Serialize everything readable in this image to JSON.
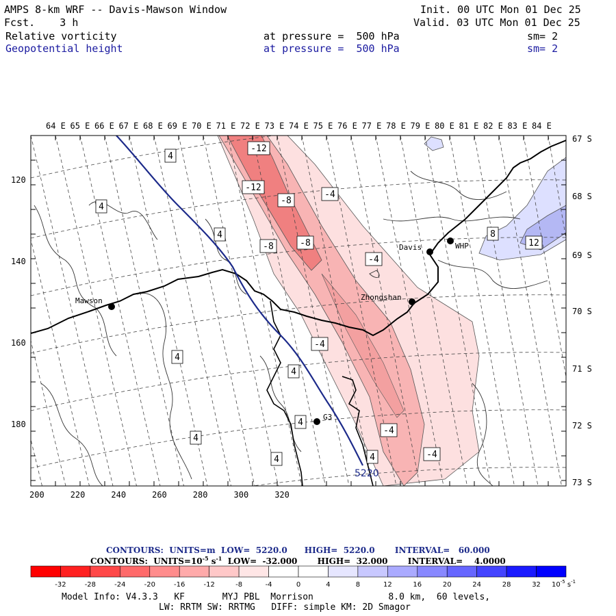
{
  "header": {
    "title": "AMPS 8-km WRF -- Davis-Mawson Window",
    "fcst_label": "Fcst.",
    "fcst_value": "3 h",
    "init": "Init. 00 UTC Mon 01 Dec 25",
    "valid": "Valid. 03 UTC Mon 01 Dec 25",
    "field1": {
      "name": "Relative vorticity",
      "level": "at pressure =  500 hPa",
      "sm": "sm= 2"
    },
    "field2": {
      "name": "Geopotential height",
      "level": "at pressure =  500 hPa",
      "sm": "sm= 2"
    }
  },
  "map": {
    "top_lon_labels": [
      "64 E",
      "65 E",
      "66 E",
      "67 E",
      "68 E",
      "69 E",
      "70 E",
      "71 E",
      "72 E",
      "73 E",
      "74 E",
      "75 E",
      "76 E",
      "77 E",
      "78 E",
      "79 E",
      "80 E",
      "81 E",
      "82 E",
      "83 E",
      "84 E"
    ],
    "right_lat_labels": [
      "67 S",
      "68 S",
      "69 S",
      "70 S",
      "71 S",
      "72 S",
      "73 S"
    ],
    "left_grid_labels": [
      "120",
      "140",
      "160",
      "180"
    ],
    "bottom_grid_labels": [
      "200",
      "220",
      "240",
      "260",
      "280",
      "300",
      "320"
    ],
    "stations": [
      {
        "name": "Mawson"
      },
      {
        "name": "Davis"
      },
      {
        "name": "WHP"
      },
      {
        "name": "Zhongshan"
      },
      {
        "name": "G3"
      }
    ],
    "height_contour_label": "5220",
    "vorticity_labels": [
      "-12",
      "-12",
      "-8",
      "-8",
      "-8",
      "-4",
      "-4",
      "-4",
      "-4",
      "-4",
      "4",
      "4",
      "4",
      "4",
      "4",
      "4",
      "4",
      "4",
      "4",
      "8",
      "12"
    ],
    "colors": {
      "neg_strong": "#f08080",
      "neg_mid": "#f8b4b4",
      "neg_weak": "#fde0e0",
      "pos_weak": "#dde0ff",
      "pos_mid": "#b4b8f4",
      "height": "#1c2a8a"
    }
  },
  "footer": {
    "contours1": "CONTOURS:  UNITS=m  LOW=  5220.0      HIGH=  5220.0       INTERVAL=   60.000",
    "contours2_a": "CONTOURS:  UNITS=10",
    "contours2_exp": "-5",
    "contours2_b": " s",
    "contours2_exp2": "-1",
    "contours2_c": "  LOW=  -32.000       HIGH=  32.000       INTERVAL=    4.0000",
    "colorbar": {
      "colors": [
        "#ff0000",
        "#ff2020",
        "#ff4848",
        "#ff6a6a",
        "#ff8c8c",
        "#ffaaaa",
        "#ffc8c8",
        "#ffe6e6",
        "#ffffff",
        "#ffffff",
        "#e6e6ff",
        "#c8c8ff",
        "#aaaaff",
        "#8888ff",
        "#6666ff",
        "#4444ff",
        "#1a1aff",
        "#0000ff"
      ],
      "ticks": [
        "-32",
        "-28",
        "-24",
        "-20",
        "-16",
        "-12",
        "-8",
        "-4",
        "0",
        "4",
        "8",
        "12",
        "16",
        "20",
        "24",
        "28",
        "32"
      ],
      "unit_a": "10",
      "unit_exp": "-5",
      "unit_b": " s",
      "unit_exp2": "-1"
    },
    "model_info": "Model Info: V4.3.3   KF       MYJ PBL  Morrison              8.0 km,  60 levels,",
    "model_info2": "LW: RRTM SW: RRTMG   DIFF: simple KM: 2D Smagor"
  }
}
